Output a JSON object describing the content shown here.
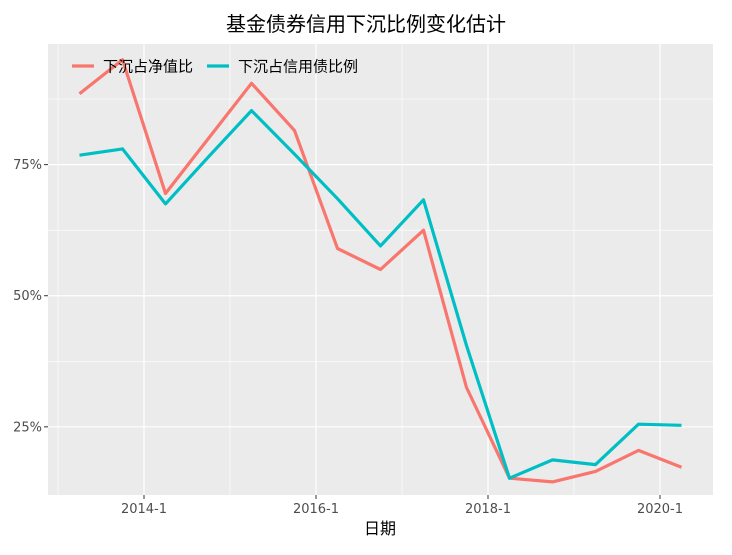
{
  "chart_data": {
    "type": "line",
    "title": "基金债券信用下沉比例变化估计",
    "xlabel": "日期",
    "ylabel": "",
    "x": [
      "2013-4",
      "2013-10",
      "2014-4",
      "2014-10",
      "2015-4",
      "2015-10",
      "2016-4",
      "2016-10",
      "2017-4",
      "2017-10",
      "2018-4",
      "2018-10",
      "2019-4",
      "2019-10",
      "2020-4"
    ],
    "x_ticks": [
      "2014-1",
      "2016-1",
      "2018-1",
      "2020-1"
    ],
    "y_ticks": [
      "25%",
      "50%",
      "75%"
    ],
    "ylim": [
      0.12,
      0.98
    ],
    "grid": true,
    "legend_position": "top-left",
    "series": [
      {
        "name": "下沉占净值比",
        "color": "#F8766D",
        "values": [
          0.885,
          0.95,
          0.695,
          0.8,
          0.905,
          0.815,
          0.59,
          0.55,
          0.625,
          0.325,
          0.152,
          0.145,
          0.165,
          0.205,
          0.173
        ]
      },
      {
        "name": "下沉占信用债比例",
        "color": "#00BFC4",
        "values": [
          0.768,
          0.78,
          0.675,
          0.765,
          0.853,
          0.77,
          0.685,
          0.595,
          0.683,
          0.405,
          0.152,
          0.187,
          0.178,
          0.255,
          0.253
        ]
      }
    ]
  }
}
